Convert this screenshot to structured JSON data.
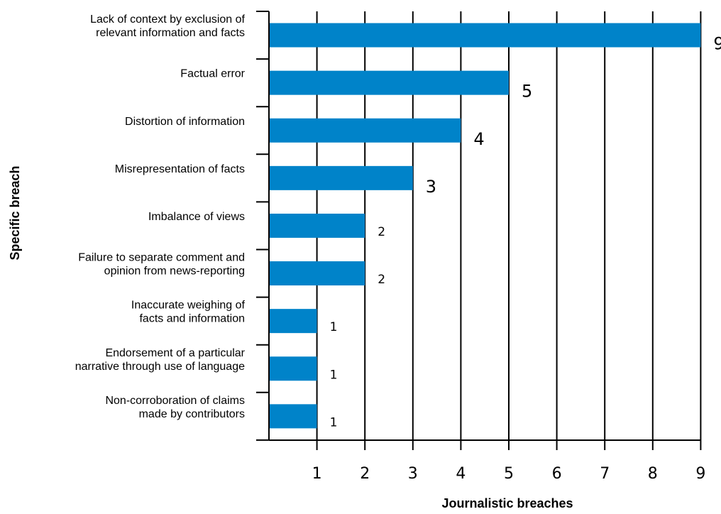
{
  "chart_data": {
    "type": "bar",
    "orientation": "horizontal",
    "title": "",
    "xlabel": "Journalistic breaches",
    "ylabel": "Specific breach",
    "categories": [
      [
        "Lack of context by exclusion of",
        "relevant information and facts"
      ],
      [
        "Factual error"
      ],
      [
        "Distortion of information"
      ],
      [
        "Misrepresentation of facts"
      ],
      [
        "Imbalance of views"
      ],
      [
        "Failure to separate comment and",
        "opinion from news-reporting"
      ],
      [
        "Inaccurate weighing of",
        "facts and information"
      ],
      [
        "Endorsement of a particular",
        "narrative through use of language"
      ],
      [
        "Non-corroboration of claims",
        "made by contributors"
      ]
    ],
    "values": [
      9,
      5,
      4,
      3,
      2,
      2,
      1,
      1,
      1
    ],
    "value_labels": [
      "9",
      "5",
      "4",
      "3",
      "2",
      "2",
      "1",
      "1",
      "1"
    ],
    "x_ticks": [
      "1",
      "2",
      "3",
      "4",
      "5",
      "6",
      "7",
      "8",
      "9"
    ],
    "xlim": [
      0,
      9
    ],
    "grid": "vertical",
    "legend": "none",
    "bar_color": "#0083c9",
    "grid_color": "#000000"
  }
}
